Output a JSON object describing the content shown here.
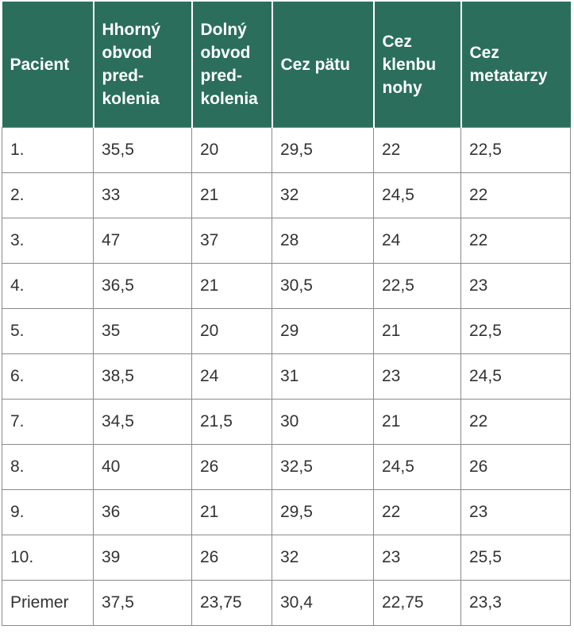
{
  "table": {
    "header": [
      "Pacient",
      "Hhorný\nobvod\npred-\nkolenia",
      "Dolný\nobvod\npred-\nkolenia",
      "Cez pätu",
      "Cez\nklenbu\nnohy",
      "Cez\nmetatarzy"
    ],
    "rows": [
      [
        "1.",
        "35,5",
        "20",
        "29,5",
        "22",
        "22,5"
      ],
      [
        "2.",
        "33",
        "21",
        "32",
        "24,5",
        "22"
      ],
      [
        "3.",
        "47",
        "37",
        "28",
        "24",
        "22"
      ],
      [
        "4.",
        "36,5",
        "21",
        "30,5",
        "22,5",
        "23"
      ],
      [
        "5.",
        "35",
        "20",
        "29",
        "21",
        "22,5"
      ],
      [
        "6.",
        "38,5",
        "24",
        "31",
        "23",
        "24,5"
      ],
      [
        "7.",
        "34,5",
        "21,5",
        "30",
        "21",
        "22"
      ],
      [
        "8.",
        "40",
        "26",
        "32,5",
        "24,5",
        "26"
      ],
      [
        "9.",
        "36",
        "21",
        "29,5",
        "22",
        "23"
      ],
      [
        "10.",
        "39",
        "26",
        "32",
        "23",
        "25,5"
      ],
      [
        "Priemer",
        "37,5",
        "23,75",
        "30,4",
        "22,75",
        "23,3"
      ]
    ]
  }
}
